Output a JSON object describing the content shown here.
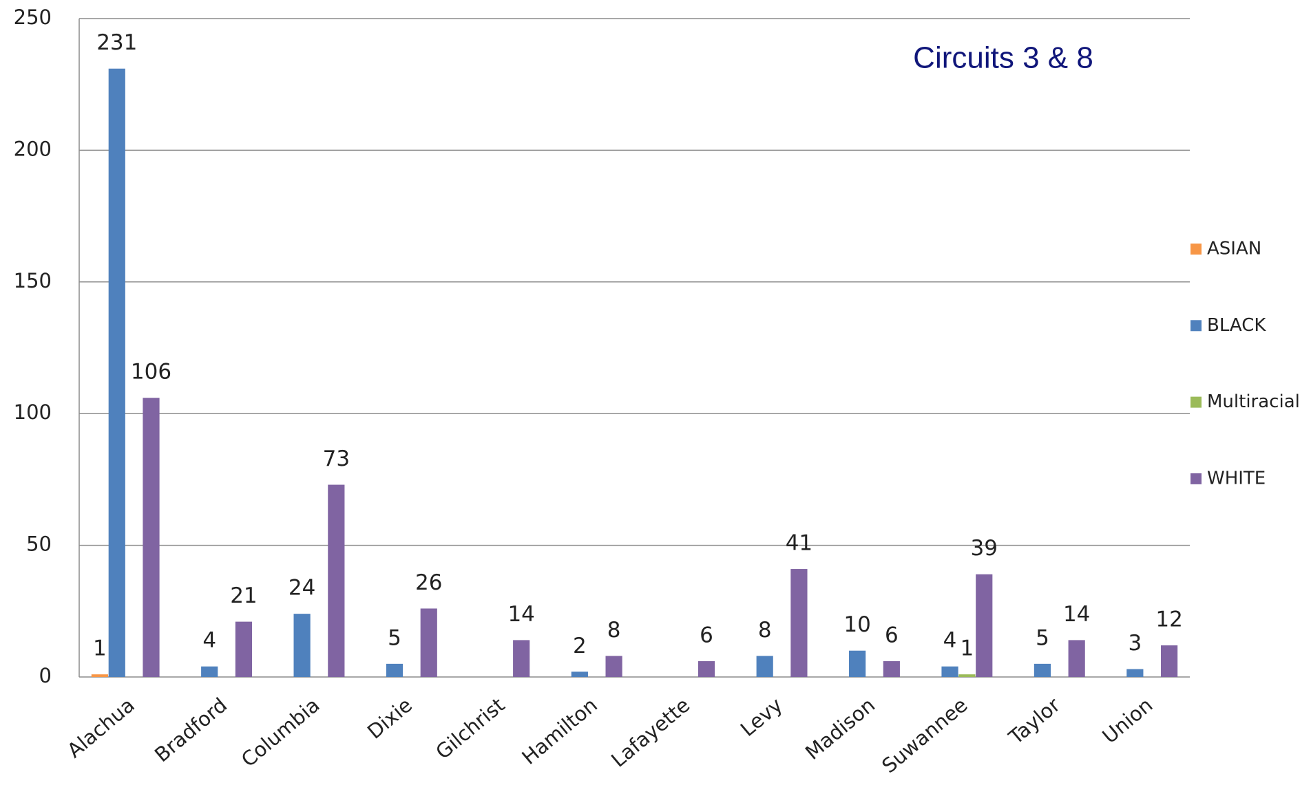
{
  "chart_data": {
    "type": "bar",
    "title": "Circuits 3 & 8",
    "categories": [
      "Alachua",
      "Bradford",
      "Columbia",
      "Dixie",
      "Gilchrist",
      "Hamilton",
      "Lafayette",
      "Levy",
      "Madison",
      "Suwannee",
      "Taylor",
      "Union"
    ],
    "series": [
      {
        "name": "ASIAN",
        "color": "#f79646",
        "values": [
          1,
          null,
          null,
          null,
          null,
          null,
          null,
          null,
          null,
          null,
          null,
          null
        ]
      },
      {
        "name": "BLACK",
        "color": "#4f81bd",
        "values": [
          231,
          4,
          24,
          5,
          null,
          2,
          null,
          8,
          10,
          4,
          5,
          3
        ]
      },
      {
        "name": "Multiracial",
        "color": "#9bbb59",
        "values": [
          null,
          null,
          null,
          null,
          null,
          null,
          null,
          null,
          null,
          1,
          null,
          null
        ]
      },
      {
        "name": "WHITE",
        "color": "#8064a2",
        "values": [
          106,
          21,
          73,
          26,
          14,
          8,
          6,
          41,
          6,
          39,
          14,
          12
        ]
      }
    ],
    "ylim": [
      0,
      250
    ],
    "yticks": [
      0,
      50,
      100,
      150,
      200,
      250
    ],
    "grid": true,
    "legend": "right"
  }
}
